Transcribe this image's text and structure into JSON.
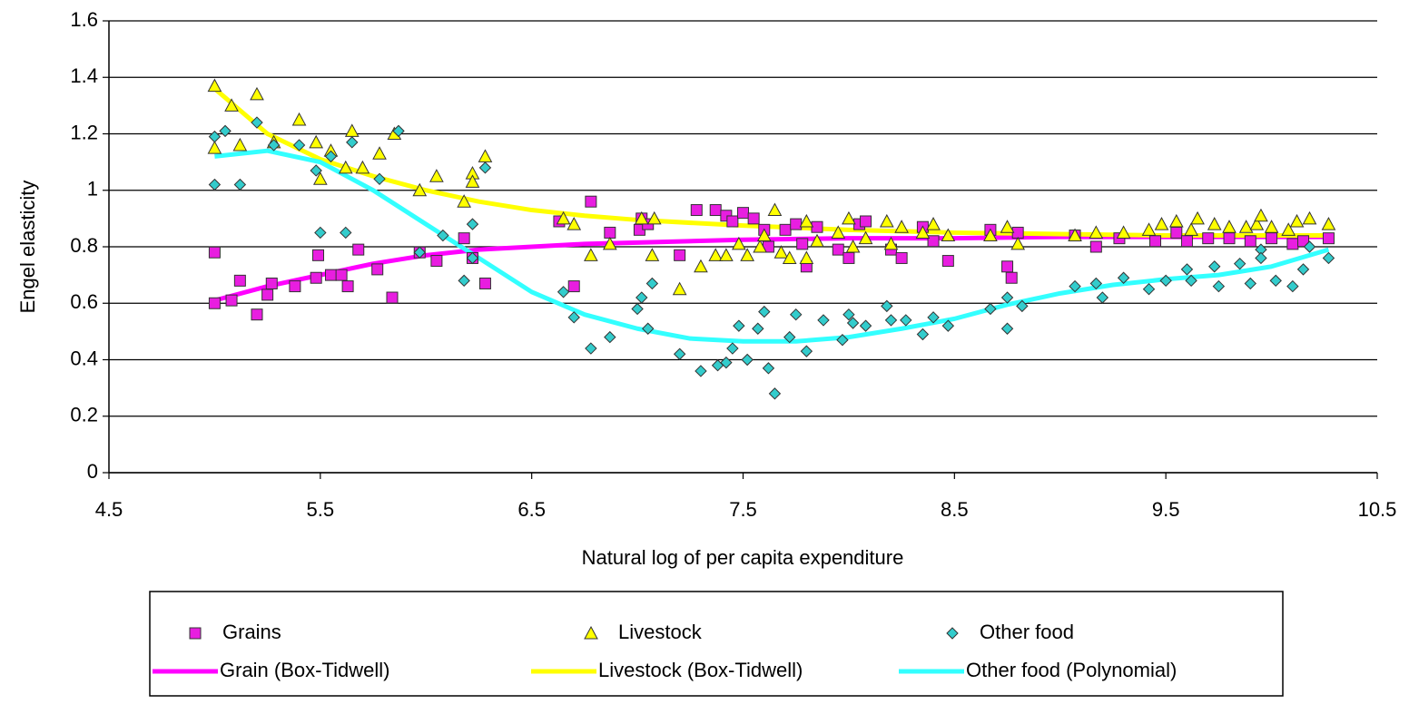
{
  "chart_data": {
    "type": "scatter",
    "xlabel": "Natural log of per capita expenditure",
    "ylabel": "Engel elasticity",
    "xlim": [
      4.5,
      10.5
    ],
    "xticks": [
      4.5,
      5.5,
      6.5,
      7.5,
      8.5,
      9.5,
      10.5
    ],
    "ylim": [
      0,
      1.6
    ],
    "yticks": [
      0,
      0.2,
      0.4,
      0.6,
      0.8,
      1,
      1.2,
      1.4,
      1.6
    ],
    "grid": true,
    "legend": "bottom",
    "series": [
      {
        "name": "Grains",
        "mode": "markers",
        "marker": "square",
        "color": "#e81ee0",
        "x": [
          5.0,
          5.0,
          5.08,
          5.12,
          5.2,
          5.25,
          5.27,
          5.38,
          5.48,
          5.49,
          5.55,
          5.6,
          5.63,
          5.68,
          5.77,
          5.84,
          5.97,
          6.05,
          6.18,
          6.22,
          6.28,
          6.63,
          6.7,
          6.78,
          6.87,
          7.01,
          7.02,
          7.05,
          7.2,
          7.28,
          7.37,
          7.42,
          7.45,
          7.5,
          7.55,
          7.6,
          7.62,
          7.7,
          7.75,
          7.78,
          7.8,
          7.85,
          7.95,
          8.0,
          8.05,
          8.08,
          8.2,
          8.25,
          8.35,
          8.4,
          8.47,
          8.67,
          8.75,
          8.77,
          8.8,
          9.07,
          9.17,
          9.28,
          9.45,
          9.55,
          9.6,
          9.7,
          9.8,
          9.9,
          10.0,
          10.1,
          10.15,
          10.27
        ],
        "values": [
          0.78,
          0.6,
          0.61,
          0.68,
          0.56,
          0.63,
          0.67,
          0.66,
          0.69,
          0.77,
          0.7,
          0.7,
          0.66,
          0.79,
          0.72,
          0.62,
          0.78,
          0.75,
          0.83,
          0.76,
          0.67,
          0.89,
          0.66,
          0.96,
          0.85,
          0.86,
          0.9,
          0.88,
          0.77,
          0.93,
          0.93,
          0.91,
          0.89,
          0.92,
          0.9,
          0.86,
          0.8,
          0.86,
          0.88,
          0.81,
          0.73,
          0.87,
          0.79,
          0.76,
          0.88,
          0.89,
          0.79,
          0.76,
          0.87,
          0.82,
          0.75,
          0.86,
          0.73,
          0.69,
          0.85,
          0.84,
          0.8,
          0.83,
          0.82,
          0.85,
          0.82,
          0.83,
          0.83,
          0.82,
          0.83,
          0.81,
          0.82,
          0.83
        ]
      },
      {
        "name": "Livestock",
        "mode": "markers",
        "marker": "triangle",
        "color": "#ffff00",
        "x": [
          5.0,
          5.0,
          5.08,
          5.12,
          5.2,
          5.28,
          5.4,
          5.48,
          5.5,
          5.55,
          5.62,
          5.65,
          5.7,
          5.78,
          5.85,
          5.97,
          6.05,
          6.18,
          6.22,
          6.22,
          6.28,
          6.65,
          6.7,
          6.78,
          6.87,
          7.02,
          7.08,
          7.07,
          7.2,
          7.3,
          7.37,
          7.42,
          7.48,
          7.52,
          7.58,
          7.6,
          7.65,
          7.68,
          7.72,
          7.8,
          7.8,
          7.85,
          7.95,
          8.0,
          8.02,
          8.08,
          8.18,
          8.2,
          8.25,
          8.35,
          8.4,
          8.47,
          8.67,
          8.75,
          8.8,
          9.07,
          9.17,
          9.3,
          9.42,
          9.48,
          9.55,
          9.62,
          9.65,
          9.73,
          9.8,
          9.88,
          9.93,
          9.95,
          10.0,
          10.08,
          10.12,
          10.18,
          10.27
        ],
        "values": [
          1.37,
          1.15,
          1.3,
          1.16,
          1.34,
          1.17,
          1.25,
          1.17,
          1.04,
          1.14,
          1.08,
          1.21,
          1.08,
          1.13,
          1.2,
          1.0,
          1.05,
          0.96,
          1.06,
          1.03,
          1.12,
          0.9,
          0.88,
          0.77,
          0.81,
          0.9,
          0.9,
          0.77,
          0.65,
          0.73,
          0.77,
          0.77,
          0.81,
          0.77,
          0.8,
          0.84,
          0.93,
          0.78,
          0.76,
          0.89,
          0.76,
          0.82,
          0.85,
          0.9,
          0.8,
          0.83,
          0.89,
          0.81,
          0.87,
          0.85,
          0.88,
          0.84,
          0.84,
          0.87,
          0.81,
          0.84,
          0.85,
          0.85,
          0.86,
          0.88,
          0.89,
          0.86,
          0.9,
          0.88,
          0.87,
          0.87,
          0.88,
          0.91,
          0.87,
          0.86,
          0.89,
          0.9,
          0.88
        ]
      },
      {
        "name": "Other food",
        "mode": "markers",
        "marker": "diamond",
        "color": "#33cccc",
        "x": [
          5.0,
          5.0,
          5.05,
          5.12,
          5.2,
          5.28,
          5.4,
          5.48,
          5.5,
          5.55,
          5.62,
          5.65,
          5.78,
          5.87,
          5.97,
          6.08,
          6.18,
          6.22,
          6.22,
          6.28,
          6.65,
          6.7,
          6.78,
          6.87,
          7.0,
          7.02,
          7.07,
          7.05,
          7.2,
          7.3,
          7.38,
          7.42,
          7.45,
          7.48,
          7.52,
          7.57,
          7.62,
          7.6,
          7.65,
          7.72,
          7.75,
          7.8,
          7.88,
          7.97,
          8.0,
          8.02,
          8.08,
          8.18,
          8.2,
          8.27,
          8.35,
          8.4,
          8.47,
          8.67,
          8.75,
          8.75,
          8.82,
          9.07,
          9.17,
          9.2,
          9.3,
          9.42,
          9.5,
          9.6,
          9.62,
          9.73,
          9.75,
          9.85,
          9.9,
          9.95,
          9.95,
          10.02,
          10.1,
          10.15,
          10.18,
          10.27
        ],
        "values": [
          1.19,
          1.02,
          1.21,
          1.02,
          1.24,
          1.16,
          1.16,
          1.07,
          0.85,
          1.12,
          0.85,
          1.17,
          1.04,
          1.21,
          0.78,
          0.84,
          0.68,
          0.88,
          0.76,
          1.08,
          0.64,
          0.55,
          0.44,
          0.48,
          0.58,
          0.62,
          0.67,
          0.51,
          0.42,
          0.36,
          0.38,
          0.39,
          0.44,
          0.52,
          0.4,
          0.51,
          0.37,
          0.57,
          0.28,
          0.48,
          0.56,
          0.43,
          0.54,
          0.47,
          0.56,
          0.53,
          0.52,
          0.59,
          0.54,
          0.54,
          0.49,
          0.55,
          0.52,
          0.58,
          0.51,
          0.62,
          0.59,
          0.66,
          0.67,
          0.62,
          0.69,
          0.65,
          0.68,
          0.72,
          0.68,
          0.73,
          0.66,
          0.74,
          0.67,
          0.79,
          0.76,
          0.68,
          0.66,
          0.72,
          0.8,
          0.76
        ]
      },
      {
        "name": "Grain (Box-Tidwell)",
        "mode": "line",
        "color": "#ff00ff",
        "x": [
          5.0,
          5.25,
          5.5,
          5.75,
          6.0,
          6.25,
          6.5,
          6.75,
          7.0,
          7.5,
          8.0,
          8.5,
          9.0,
          9.5,
          10.0,
          10.27
        ],
        "values": [
          0.61,
          0.66,
          0.7,
          0.74,
          0.77,
          0.79,
          0.8,
          0.81,
          0.815,
          0.825,
          0.83,
          0.83,
          0.835,
          0.835,
          0.835,
          0.835
        ]
      },
      {
        "name": "Livestock (Box-Tidwell)",
        "mode": "line",
        "color": "#ffff00",
        "x": [
          5.0,
          5.25,
          5.5,
          5.75,
          6.0,
          6.25,
          6.5,
          6.75,
          7.0,
          7.5,
          8.0,
          8.5,
          9.0,
          9.5,
          10.0,
          10.27
        ],
        "values": [
          1.36,
          1.2,
          1.11,
          1.05,
          1.0,
          0.96,
          0.93,
          0.91,
          0.895,
          0.875,
          0.86,
          0.85,
          0.845,
          0.84,
          0.84,
          0.84
        ]
      },
      {
        "name": "Other food (Polynomial)",
        "mode": "line",
        "color": "#33ffff",
        "x": [
          5.0,
          5.25,
          5.5,
          5.75,
          6.0,
          6.25,
          6.5,
          6.75,
          7.0,
          7.25,
          7.5,
          7.75,
          8.0,
          8.25,
          8.5,
          8.75,
          9.0,
          9.25,
          9.5,
          9.75,
          10.0,
          10.27
        ],
        "values": [
          1.12,
          1.14,
          1.1,
          1.0,
          0.88,
          0.76,
          0.64,
          0.56,
          0.51,
          0.475,
          0.465,
          0.465,
          0.48,
          0.51,
          0.545,
          0.595,
          0.635,
          0.665,
          0.685,
          0.7,
          0.73,
          0.79
        ]
      }
    ]
  }
}
